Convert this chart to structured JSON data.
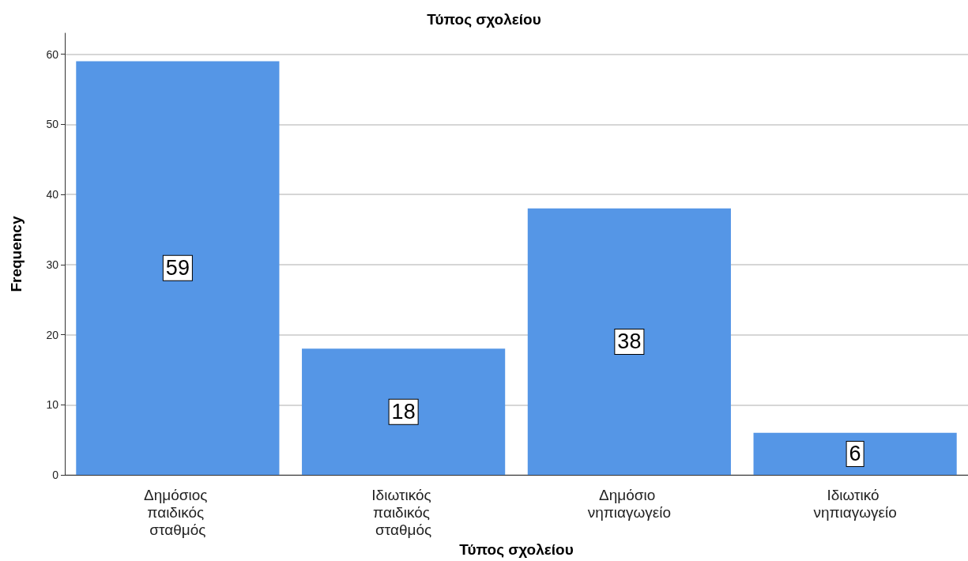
{
  "chart_data": {
    "type": "bar",
    "title": "Τύπος σχολείου",
    "xlabel": "Τύπος σχολείου",
    "ylabel": "Frequency",
    "categories": [
      "Δημόσιος παιδικός σταθμός",
      "Ιδιωτικός παιδικός σταθμός",
      "Δημόσιο νηπιαγωγείο",
      "Ιδιωτικό νηπιαγωγείο"
    ],
    "values": [
      59,
      18,
      38,
      6
    ],
    "color": "#5596e6",
    "ylim": [
      0,
      63
    ],
    "yticks": [
      0,
      10,
      20,
      30,
      40,
      50,
      60
    ],
    "grid": "y",
    "data_labels": true
  }
}
